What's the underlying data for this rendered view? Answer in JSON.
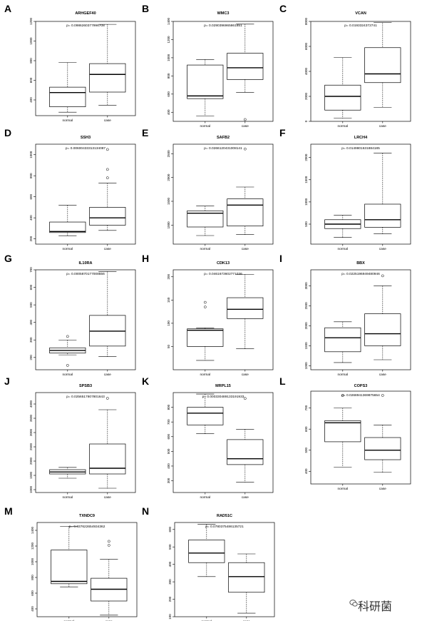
{
  "watermark": "科研菌",
  "chart_data": [
    {
      "letter": "A",
      "type": "boxplot",
      "title": "ARHGEF40",
      "p_label": "p= 0.0986260377996708",
      "categories": [
        "normal",
        "case"
      ],
      "ylim": [
        240,
        1200
      ],
      "yticks": [
        400,
        600,
        800,
        1000,
        1200
      ],
      "boxes": [
        {
          "low": 275,
          "q1": 330,
          "median": 475,
          "q3": 530,
          "high": 780,
          "outliers": []
        },
        {
          "low": 345,
          "q1": 480,
          "median": 660,
          "q3": 770,
          "high": 1170,
          "outliers": []
        }
      ]
    },
    {
      "letter": "B",
      "type": "boxplot",
      "title": "WMC3",
      "p_label": "p= 0.0290396965861851",
      "categories": [
        "normal",
        "case"
      ],
      "ylim": [
        300,
        1400
      ],
      "yticks": [
        400,
        600,
        800,
        1000,
        1200,
        1400
      ],
      "boxes": [
        {
          "low": 360,
          "q1": 550,
          "median": 580,
          "q3": 920,
          "high": 980,
          "outliers": []
        },
        {
          "low": 620,
          "q1": 760,
          "median": 890,
          "q3": 1050,
          "high": 1370,
          "outliers": [
            320
          ]
        }
      ]
    },
    {
      "letter": "C",
      "type": "boxplot",
      "title": "VCAN",
      "p_label": "p= 0.0193324372741",
      "categories": [
        "normal",
        "case"
      ],
      "ylim": [
        0,
        8000
      ],
      "yticks": [
        0,
        2000,
        4000,
        6000,
        8000
      ],
      "boxes": [
        {
          "low": 250,
          "q1": 900,
          "median": 2000,
          "q3": 2900,
          "high": 5100,
          "outliers": []
        },
        {
          "low": 1100,
          "q1": 3100,
          "median": 3800,
          "q3": 5900,
          "high": 7900,
          "outliers": []
        }
      ]
    },
    {
      "letter": "D",
      "type": "boxplot",
      "title": "SSH3",
      "p_label": "p= 0.00600433313134087",
      "categories": [
        "normal",
        "case"
      ],
      "ylim": [
        150,
        1100
      ],
      "yticks": [
        200,
        400,
        600,
        800,
        1000
      ],
      "boxes": [
        {
          "low": 230,
          "q1": 260,
          "median": 270,
          "q3": 360,
          "high": 520,
          "outliers": []
        },
        {
          "low": 280,
          "q1": 330,
          "median": 400,
          "q3": 500,
          "high": 730,
          "outliers": [
            780,
            860,
            1050
          ]
        }
      ]
    },
    {
      "letter": "E",
      "type": "boxplot",
      "title": "SAFB2",
      "p_label": "p= 0.0266120431008141",
      "categories": [
        "normal",
        "case"
      ],
      "ylim": [
        600,
        2700
      ],
      "yticks": [
        1000,
        1500,
        2000,
        2500
      ],
      "boxes": [
        {
          "low": 780,
          "q1": 960,
          "median": 1250,
          "q3": 1300,
          "high": 1400,
          "outliers": []
        },
        {
          "low": 800,
          "q1": 980,
          "median": 1420,
          "q3": 1550,
          "high": 1800,
          "outliers": [
            2600
          ]
        }
      ]
    },
    {
      "letter": "F",
      "type": "boxplot",
      "title": "LRCH4",
      "p_label": "p= 0.0149801631884185",
      "categories": [
        "normal",
        "case"
      ],
      "ylim": [
        50,
        2300
      ],
      "yticks": [
        500,
        1000,
        1500,
        2000
      ],
      "boxes": [
        {
          "low": 200,
          "q1": 400,
          "median": 500,
          "q3": 600,
          "high": 700,
          "outliers": []
        },
        {
          "low": 280,
          "q1": 430,
          "median": 600,
          "q3": 950,
          "high": 2100,
          "outliers": []
        }
      ]
    },
    {
      "letter": "G",
      "type": "boxplot",
      "title": "IL10RA",
      "p_label": "p= 0.0005870177008556",
      "categories": [
        "normal",
        "case"
      ],
      "ylim": [
        130,
        700
      ],
      "yticks": [
        200,
        300,
        400,
        500,
        600,
        700
      ],
      "boxes": [
        {
          "low": 215,
          "q1": 225,
          "median": 240,
          "q3": 255,
          "high": 300,
          "outliers": [
            155,
            320
          ]
        },
        {
          "low": 205,
          "q1": 265,
          "median": 350,
          "q3": 440,
          "high": 690,
          "outliers": []
        }
      ]
    },
    {
      "letter": "H",
      "type": "boxplot",
      "title": "CDK13",
      "p_label": "p= 0.0461673602771036",
      "categories": [
        "normal",
        "case"
      ],
      "ylim": [
        0,
        215
      ],
      "yticks": [
        50,
        100,
        150,
        200
      ],
      "boxes": [
        {
          "low": 20,
          "q1": 50,
          "median": 85,
          "q3": 88,
          "high": 90,
          "outliers": [
            135,
            145
          ]
        },
        {
          "low": 45,
          "q1": 110,
          "median": 130,
          "q3": 155,
          "high": 205,
          "outliers": []
        }
      ]
    },
    {
      "letter": "I",
      "type": "boxplot",
      "title": "BBX",
      "p_label": "p= 0.0225196949480946",
      "categories": [
        "normal",
        "case"
      ],
      "ylim": [
        900,
        3400
      ],
      "yticks": [
        1000,
        1500,
        2000,
        2500,
        3000
      ],
      "boxes": [
        {
          "low": 1080,
          "q1": 1350,
          "median": 1700,
          "q3": 1950,
          "high": 2100,
          "outliers": []
        },
        {
          "low": 1150,
          "q1": 1500,
          "median": 1800,
          "q3": 2300,
          "high": 3000,
          "outliers": [
            3250
          ]
        }
      ]
    },
    {
      "letter": "J",
      "type": "boxplot",
      "title": "SPSB3",
      "p_label": "p= 0.0256517807801643",
      "categories": [
        "normal",
        "case"
      ],
      "ylim": [
        900,
        4400
      ],
      "yticks": [
        1000,
        1500,
        2000,
        2500,
        3000,
        3500,
        4000
      ],
      "boxes": [
        {
          "low": 1400,
          "q1": 1550,
          "median": 1620,
          "q3": 1700,
          "high": 1780,
          "outliers": []
        },
        {
          "low": 1050,
          "q1": 1550,
          "median": 1750,
          "q3": 2600,
          "high": 3800,
          "outliers": [
            4200
          ]
        }
      ]
    },
    {
      "letter": "K",
      "type": "boxplot",
      "title": "MRPL15",
      "p_label": "p= 0.000330489133191933",
      "categories": [
        "normal",
        "case"
      ],
      "ylim": [
        220,
        900
      ],
      "yticks": [
        300,
        400,
        500,
        600,
        700,
        800
      ],
      "boxes": [
        {
          "low": 620,
          "q1": 680,
          "median": 760,
          "q3": 800,
          "high": 890,
          "outliers": []
        },
        {
          "low": 290,
          "q1": 410,
          "median": 450,
          "q3": 580,
          "high": 650,
          "outliers": [
            860
          ]
        }
      ]
    },
    {
      "letter": "L",
      "type": "boxplot",
      "title": "COPS3",
      "p_label": "p= 0.0268941369875654",
      "categories": [
        "normal",
        "case"
      ],
      "ylim": [
        340,
        780
      ],
      "yticks": [
        400,
        500,
        600,
        700
      ],
      "boxes": [
        {
          "low": 420,
          "q1": 540,
          "median": 630,
          "q3": 640,
          "high": 700,
          "outliers": [
            760
          ]
        },
        {
          "low": 395,
          "q1": 455,
          "median": 500,
          "q3": 560,
          "high": 620,
          "outliers": [
            760
          ]
        }
      ]
    },
    {
      "letter": "M",
      "type": "boxplot",
      "title": "TXNDC9",
      "p_label": "p= 0.037622654934362",
      "categories": [
        "normal",
        "case"
      ],
      "ylim": [
        300,
        1500
      ],
      "yticks": [
        400,
        600,
        800,
        1000,
        1200,
        1400
      ],
      "boxes": [
        {
          "low": 680,
          "q1": 720,
          "median": 750,
          "q3": 1150,
          "high": 1450,
          "outliers": []
        },
        {
          "low": 320,
          "q1": 500,
          "median": 650,
          "q3": 790,
          "high": 1030,
          "outliers": [
            1210,
            1260
          ]
        }
      ]
    },
    {
      "letter": "N",
      "type": "boxplot",
      "title": "RAD51C",
      "p_label": "p= 0.0780375486135721",
      "categories": [
        "normal",
        "case"
      ],
      "ylim": [
        100,
        640
      ],
      "yticks": [
        100,
        200,
        300,
        400,
        500,
        600
      ],
      "boxes": [
        {
          "low": 330,
          "q1": 410,
          "median": 465,
          "q3": 540,
          "high": 630,
          "outliers": []
        },
        {
          "low": 120,
          "q1": 240,
          "median": 330,
          "q3": 410,
          "high": 460,
          "outliers": []
        }
      ]
    }
  ]
}
